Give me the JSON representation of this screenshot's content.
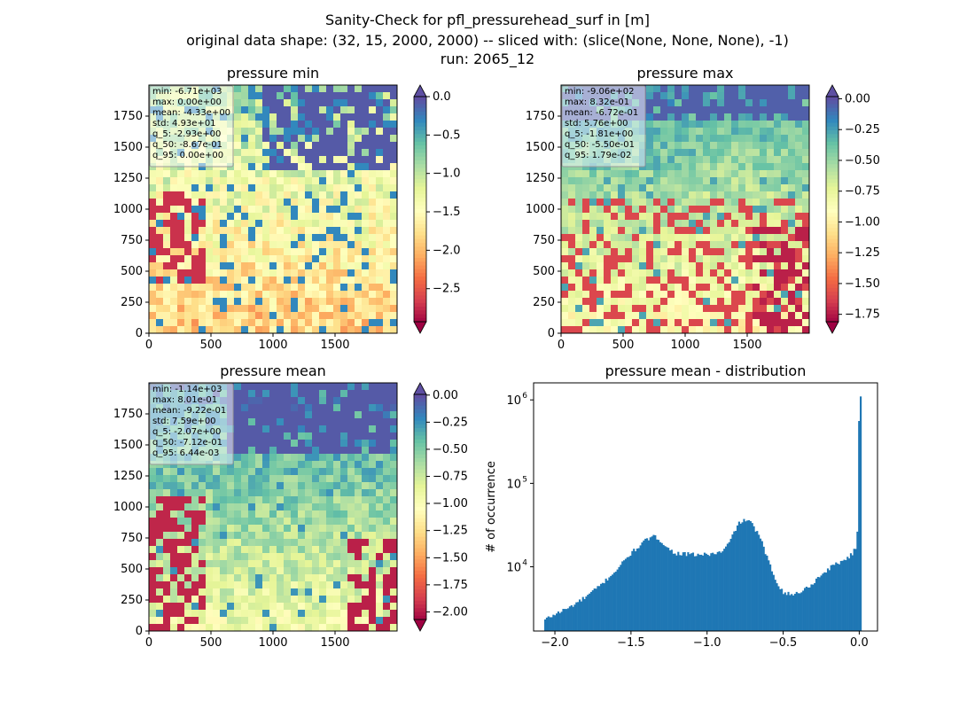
{
  "figure": {
    "title_lines": [
      "Sanity-Check for pfl_pressurehead_surf in [m]",
      "original data shape: (32, 15, 2000, 2000) -- sliced with: (slice(None, None, None), -1)",
      "run: 2065_12"
    ]
  },
  "colormap": [
    "#9e0142",
    "#d53e4f",
    "#f46d43",
    "#fdae61",
    "#fee08b",
    "#ffffbf",
    "#e6f598",
    "#abdda4",
    "#66c2a5",
    "#3288bd",
    "#5e4fa2"
  ],
  "chart_data": [
    {
      "type": "heatmap",
      "title": "pressure min",
      "xlim": [
        0,
        2000
      ],
      "ylim": [
        0,
        2000
      ],
      "xticks": [
        0,
        500,
        1000,
        1500
      ],
      "yticks": [
        0,
        250,
        500,
        750,
        1000,
        1250,
        1500,
        1750
      ],
      "colorbar": {
        "vmin": -2.93,
        "vmax": 0.0,
        "ticks": [
          0.0,
          -0.5,
          -1.0,
          -1.5,
          -2.0,
          -2.5
        ],
        "tick_labels": [
          "0.0",
          "−0.5",
          "−1.0",
          "−1.5",
          "−2.0",
          "−2.5"
        ],
        "extend": "both"
      },
      "stats": [
        "min: -6.71e+03",
        "max: 0.00e+00",
        "mean: -4.33e+00",
        "std: 4.93e+01",
        "q_5: -2.93e+00",
        "q_50: -8.67e-01",
        "q_95: 0.00e+00"
      ]
    },
    {
      "type": "heatmap",
      "title": "pressure max",
      "xlim": [
        0,
        2000
      ],
      "ylim": [
        0,
        2000
      ],
      "xticks": [
        0,
        500,
        1000,
        1500
      ],
      "yticks": [
        0,
        250,
        500,
        750,
        1000,
        1250,
        1500,
        1750
      ],
      "colorbar": {
        "vmin": -1.81,
        "vmax": 0.0179,
        "ticks": [
          0.0,
          -0.25,
          -0.5,
          -0.75,
          -1.0,
          -1.25,
          -1.5,
          -1.75
        ],
        "tick_labels": [
          "0.00",
          "−0.25",
          "−0.50",
          "−0.75",
          "−1.00",
          "−1.25",
          "−1.50",
          "−1.75"
        ],
        "extend": "both"
      },
      "stats": [
        "min: -9.06e+02",
        "max: 8.32e-01",
        "mean: -6.72e-01",
        "std: 5.76e+00",
        "q_5: -1.81e+00",
        "q_50: -5.50e-01",
        "q_95: 1.79e-02"
      ]
    },
    {
      "type": "heatmap",
      "title": "pressure mean",
      "xlim": [
        0,
        2000
      ],
      "ylim": [
        0,
        2000
      ],
      "xticks": [
        0,
        500,
        1000,
        1500
      ],
      "yticks": [
        0,
        250,
        500,
        750,
        1000,
        1250,
        1500,
        1750
      ],
      "colorbar": {
        "vmin": -2.07,
        "vmax": 0.00644,
        "ticks": [
          0.0,
          -0.25,
          -0.5,
          -0.75,
          -1.0,
          -1.25,
          -1.5,
          -1.75,
          -2.0
        ],
        "tick_labels": [
          "0.00",
          "−0.25",
          "−0.50",
          "−0.75",
          "−1.00",
          "−1.25",
          "−1.50",
          "−1.75",
          "−2.00"
        ],
        "extend": "both"
      },
      "stats": [
        "min: -1.14e+03",
        "max: 8.01e-01",
        "mean: -9.22e-01",
        "std: 7.59e+00",
        "q_5: -2.07e+00",
        "q_50: -7.12e-01",
        "q_95: 6.44e-03"
      ]
    },
    {
      "type": "bar",
      "title": "pressure mean - distribution",
      "ylabel": "# of occurrence",
      "xlabel": "",
      "yscale": "log",
      "xlim": [
        -2.14,
        0.12
      ],
      "ylim": [
        1700,
        1600000
      ],
      "xticks": [
        -2.0,
        -1.5,
        -1.0,
        -0.5,
        0.0
      ],
      "xtick_labels": [
        "−2.0",
        "−1.5",
        "−1.0",
        "−0.5",
        "0.0"
      ],
      "yticks": [
        10000,
        100000,
        1000000
      ],
      "ytick_labels": [
        "10",
        "10",
        "10"
      ],
      "ytick_exponents": [
        "4",
        "5",
        "6"
      ],
      "bar_color": "#1f77b4",
      "bins": {
        "start": -2.07,
        "width": 0.0108
      },
      "profile": [
        [
          -2.07,
          2300
        ],
        [
          -2.0,
          2700
        ],
        [
          -1.9,
          3300
        ],
        [
          -1.8,
          4300
        ],
        [
          -1.7,
          6000
        ],
        [
          -1.6,
          9000
        ],
        [
          -1.5,
          14500
        ],
        [
          -1.4,
          21000
        ],
        [
          -1.35,
          23000
        ],
        [
          -1.3,
          20500
        ],
        [
          -1.25,
          16000
        ],
        [
          -1.2,
          14500
        ],
        [
          -1.1,
          14000
        ],
        [
          -1.0,
          14000
        ],
        [
          -0.9,
          15000
        ],
        [
          -0.85,
          20000
        ],
        [
          -0.8,
          32000
        ],
        [
          -0.75,
          37000
        ],
        [
          -0.7,
          32000
        ],
        [
          -0.65,
          22000
        ],
        [
          -0.6,
          12000
        ],
        [
          -0.55,
          7000
        ],
        [
          -0.5,
          5000
        ],
        [
          -0.45,
          4600
        ],
        [
          -0.4,
          4900
        ],
        [
          -0.35,
          5500
        ],
        [
          -0.3,
          6500
        ],
        [
          -0.25,
          8000
        ],
        [
          -0.2,
          9500
        ],
        [
          -0.15,
          11000
        ],
        [
          -0.1,
          12000
        ],
        [
          -0.05,
          14000
        ],
        [
          -0.02,
          17000
        ],
        [
          -0.01,
          32000
        ],
        [
          0.0,
          1100000
        ]
      ]
    }
  ]
}
